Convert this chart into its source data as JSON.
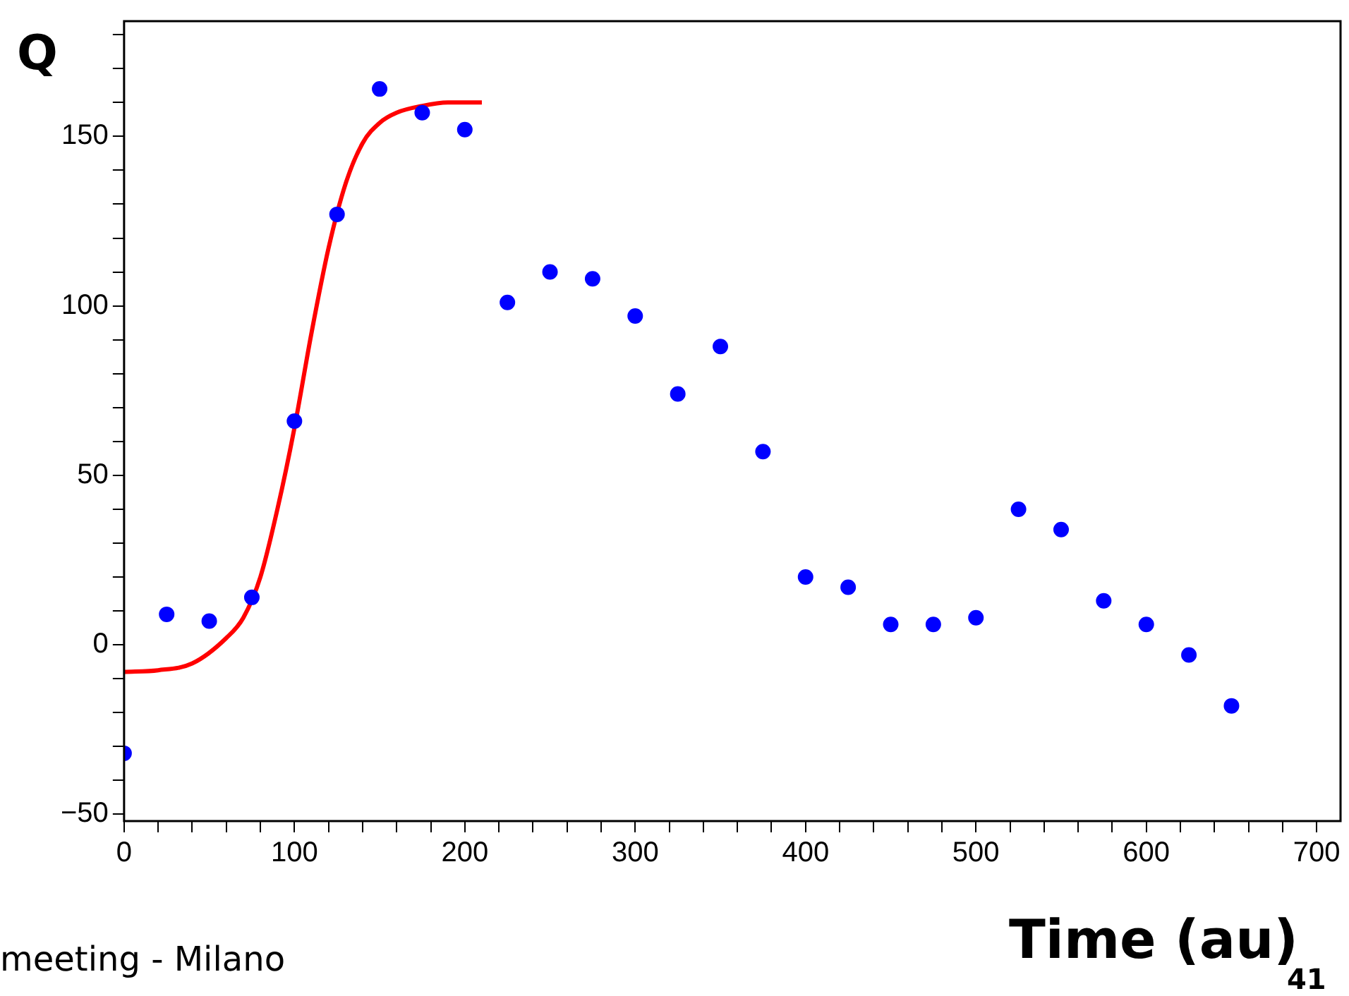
{
  "chart_data": {
    "type": "scatter",
    "xlabel": "Time (au)",
    "ylabel": "Q",
    "annotations": [
      "meeting - Milano",
      "41"
    ],
    "xlim": [
      0,
      714
    ],
    "ylim": [
      -52,
      184
    ],
    "xticks": [
      0,
      {
        "value": 20,
        "label": null
      },
      {
        "value": 40,
        "label": null
      },
      {
        "value": 60,
        "label": null
      },
      {
        "value": 80,
        "label": null
      },
      100,
      {
        "value": 120,
        "label": null
      },
      {
        "value": 140,
        "label": null
      },
      {
        "value": 160,
        "label": null
      },
      {
        "value": 180,
        "label": null
      },
      200,
      {
        "value": 220,
        "label": null
      },
      {
        "value": 240,
        "label": null
      },
      {
        "value": 260,
        "label": null
      },
      {
        "value": 280,
        "label": null
      },
      300,
      {
        "value": 320,
        "label": null
      },
      {
        "value": 340,
        "label": null
      },
      {
        "value": 360,
        "label": null
      },
      {
        "value": 380,
        "label": null
      },
      400,
      {
        "value": 420,
        "label": null
      },
      {
        "value": 440,
        "label": null
      },
      {
        "value": 460,
        "label": null
      },
      {
        "value": 480,
        "label": null
      },
      500,
      {
        "value": 520,
        "label": null
      },
      {
        "value": 540,
        "label": null
      },
      {
        "value": 560,
        "label": null
      },
      {
        "value": 580,
        "label": null
      },
      600,
      {
        "value": 620,
        "label": null
      },
      {
        "value": 640,
        "label": null
      },
      {
        "value": 660,
        "label": null
      },
      {
        "value": 680,
        "label": null
      },
      700
    ],
    "yticks": [
      {
        "value": -50,
        "label": "−50"
      },
      {
        "value": -40,
        "label": null
      },
      {
        "value": -30,
        "label": null
      },
      {
        "value": -20,
        "label": null
      },
      {
        "value": -10,
        "label": null
      },
      0,
      {
        "value": 10,
        "label": null
      },
      {
        "value": 20,
        "label": null
      },
      {
        "value": 30,
        "label": null
      },
      {
        "value": 40,
        "label": null
      },
      50,
      {
        "value": 60,
        "label": null
      },
      {
        "value": 70,
        "label": null
      },
      {
        "value": 80,
        "label": null
      },
      {
        "value": 90,
        "label": null
      },
      100,
      {
        "value": 110,
        "label": null
      },
      {
        "value": 120,
        "label": null
      },
      {
        "value": 130,
        "label": null
      },
      {
        "value": 140,
        "label": null
      },
      150,
      {
        "value": 160,
        "label": null
      },
      {
        "value": 170,
        "label": null
      },
      {
        "value": 180,
        "label": null
      }
    ],
    "grid": false,
    "legend": false,
    "series": [
      {
        "color": "#0000ff",
        "marker": "circle",
        "x": [
          0,
          25,
          50,
          75,
          100,
          125,
          150,
          175,
          200,
          225,
          250,
          275,
          300,
          325,
          350,
          375,
          400,
          425,
          450,
          475,
          500,
          525,
          550,
          575,
          600,
          625,
          650
        ],
        "values": [
          -32,
          9,
          7,
          14,
          66,
          127,
          164,
          157,
          152,
          101,
          110,
          108,
          97,
          74,
          88,
          57,
          20,
          17,
          6,
          6,
          8,
          40,
          34,
          13,
          6,
          -3,
          -18
        ]
      },
      {
        "type": "line",
        "color": "#ff0000",
        "line_style": "solid",
        "x": [
          0,
          20,
          40,
          60,
          70,
          80,
          90,
          100,
          110,
          120,
          130,
          140,
          150,
          160,
          175,
          190,
          210
        ],
        "values": [
          -8,
          -7.5,
          -5.5,
          2,
          8,
          20,
          40,
          64,
          92,
          117,
          136,
          148,
          154,
          157,
          159,
          160,
          160
        ]
      }
    ]
  }
}
